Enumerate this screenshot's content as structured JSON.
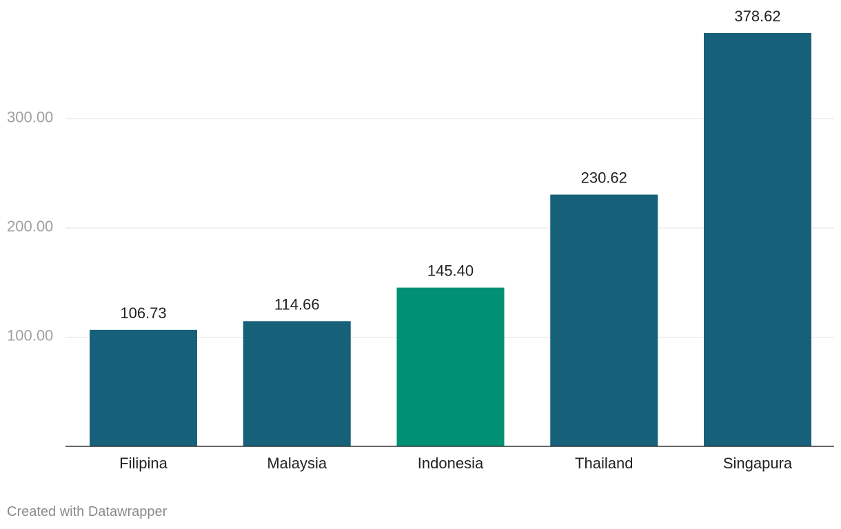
{
  "chart_data": {
    "type": "bar",
    "categories": [
      "Filipina",
      "Malaysia",
      "Indonesia",
      "Thailand",
      "Singapura"
    ],
    "values": [
      106.73,
      114.66,
      145.4,
      230.62,
      378.62
    ],
    "value_labels": [
      "106.73",
      "114.66",
      "145.40",
      "230.62",
      "378.62"
    ],
    "bar_colors": [
      "#17607a",
      "#17607a",
      "#009073",
      "#17607a",
      "#17607a"
    ],
    "highlight_category": "Indonesia",
    "ylim": [
      0,
      378.62
    ],
    "yticks": [
      100,
      200,
      300
    ],
    "ytick_labels": [
      "100.00",
      "200.00",
      "300.00"
    ],
    "grid": true,
    "title": "",
    "xlabel": "",
    "ylabel": ""
  },
  "footer": {
    "credit": "Created with Datawrapper"
  }
}
